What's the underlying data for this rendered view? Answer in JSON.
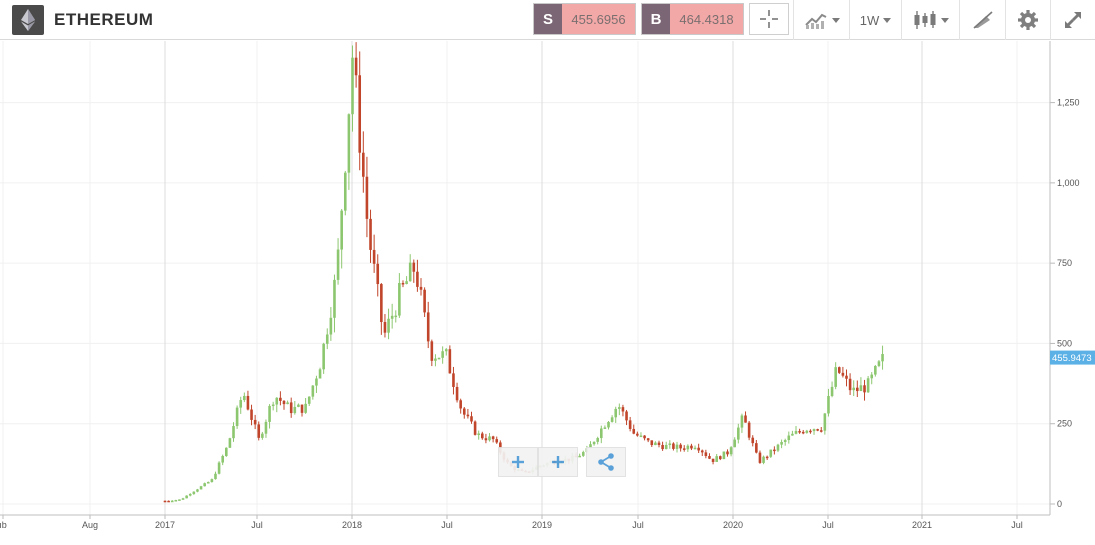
{
  "header": {
    "title": "ETHEREUM",
    "sell_label": "S",
    "sell_price": "455.6956",
    "buy_label": "B",
    "buy_price": "464.4318",
    "interval": "1W"
  },
  "icons": [
    "ethereum-logo-icon",
    "crosshair-icon",
    "indicators-icon",
    "candlestick-icon",
    "drawing-tools-icon",
    "gear-icon",
    "expand-icon",
    "zoom-out-icon",
    "zoom-in-icon",
    "share-icon"
  ],
  "colors": {
    "up": "#8cc76f",
    "down": "#c0452a",
    "last_price_bg": "#5bb0e6",
    "sell_bg": "#f3a8a8",
    "tag_bg": "#7b6675"
  },
  "chart_data": {
    "type": "candlestick",
    "x_ticks": [
      "ıb",
      "Aug",
      "2017",
      "Jul",
      "2018",
      "Jul",
      "2019",
      "Jul",
      "2020",
      "Jul",
      "2021",
      "Jul"
    ],
    "y_ticks": [
      "0",
      "250",
      "500",
      "750",
      "1,000",
      "1,250"
    ],
    "ylim": [
      0,
      1420
    ],
    "last_price": "455.9473",
    "grid": true,
    "series": [
      {
        "x": "2017-01",
        "y": 10
      },
      {
        "x": "2017-02",
        "y": 14
      },
      {
        "x": "2017-03",
        "y": 45
      },
      {
        "x": "2017-04",
        "y": 75
      },
      {
        "x": "2017-05",
        "y": 180
      },
      {
        "x": "2017-06",
        "y": 350
      },
      {
        "x": "2017-07",
        "y": 200
      },
      {
        "x": "2017-08",
        "y": 340
      },
      {
        "x": "2017-09",
        "y": 295
      },
      {
        "x": "2017-10",
        "y": 300
      },
      {
        "x": "2017-11",
        "y": 450
      },
      {
        "x": "2017-12",
        "y": 720
      },
      {
        "x": "2018-01",
        "y": 1400
      },
      {
        "x": "2018-02",
        "y": 850
      },
      {
        "x": "2018-03",
        "y": 520
      },
      {
        "x": "2018-04",
        "y": 650
      },
      {
        "x": "2018-05",
        "y": 740
      },
      {
        "x": "2018-06",
        "y": 470
      },
      {
        "x": "2018-07",
        "y": 460
      },
      {
        "x": "2018-08",
        "y": 290
      },
      {
        "x": "2018-09",
        "y": 215
      },
      {
        "x": "2018-10",
        "y": 200
      },
      {
        "x": "2018-11",
        "y": 120
      },
      {
        "x": "2018-12",
        "y": 95
      },
      {
        "x": "2019-01",
        "y": 120
      },
      {
        "x": "2019-02",
        "y": 135
      },
      {
        "x": "2019-03",
        "y": 140
      },
      {
        "x": "2019-04",
        "y": 165
      },
      {
        "x": "2019-05",
        "y": 240
      },
      {
        "x": "2019-06",
        "y": 310
      },
      {
        "x": "2019-07",
        "y": 220
      },
      {
        "x": "2019-08",
        "y": 190
      },
      {
        "x": "2019-09",
        "y": 180
      },
      {
        "x": "2019-10",
        "y": 175
      },
      {
        "x": "2019-11",
        "y": 185
      },
      {
        "x": "2019-12",
        "y": 135
      },
      {
        "x": "2020-01",
        "y": 160
      },
      {
        "x": "2020-02",
        "y": 270
      },
      {
        "x": "2020-03",
        "y": 130
      },
      {
        "x": "2020-04",
        "y": 170
      },
      {
        "x": "2020-05",
        "y": 210
      },
      {
        "x": "2020-06",
        "y": 235
      },
      {
        "x": "2020-07",
        "y": 240
      },
      {
        "x": "2020-08",
        "y": 420
      },
      {
        "x": "2020-09",
        "y": 350
      },
      {
        "x": "2020-10",
        "y": 370
      },
      {
        "x": "2020-11",
        "y": 455
      }
    ]
  }
}
